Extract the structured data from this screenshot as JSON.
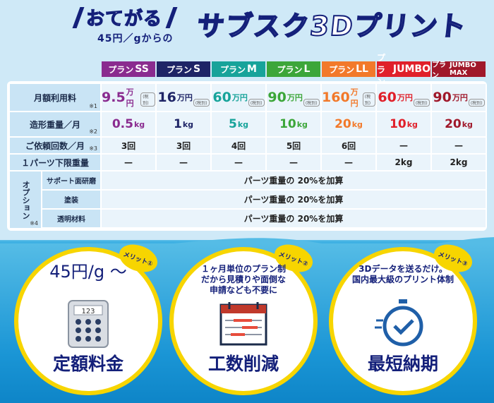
{
  "header": {
    "slogan": "おてがる",
    "sub": "45円／gからの",
    "brand": "サブスク3Dプリント"
  },
  "plans": [
    {
      "prefix": "プラン",
      "name": "SS",
      "color": "#8a2b8f"
    },
    {
      "prefix": "プラン",
      "name": "S",
      "color": "#1e2466"
    },
    {
      "prefix": "プラン",
      "name": "M",
      "color": "#17a39a"
    },
    {
      "prefix": "プラン",
      "name": "L",
      "color": "#3ca639"
    },
    {
      "prefix": "プラン",
      "name": "LL",
      "color": "#f2792a"
    },
    {
      "prefix": "プラン",
      "name": "JUMBO",
      "color": "#e0202a"
    },
    {
      "prefix": "プラン",
      "name": "JUMBO MAX",
      "color": "#a0182a"
    }
  ],
  "rows": {
    "monthly": {
      "label": "月額利用料",
      "note": "※1",
      "unit": "万円",
      "tax": "(税別)",
      "values": [
        "9.5",
        "16",
        "60",
        "90",
        "160",
        "60",
        "90"
      ]
    },
    "weight": {
      "label": "造形重量／月",
      "note": "※2",
      "unit": "kg",
      "values": [
        "0.5",
        "1",
        "5",
        "10",
        "20",
        "10",
        "20"
      ]
    },
    "requests": {
      "label": "ご依頼回数／月",
      "note": "※3",
      "values": [
        "3回",
        "3回",
        "4回",
        "5回",
        "6回",
        "—",
        "—"
      ]
    },
    "part_limit": {
      "label": "１パーツ下限重量",
      "values": [
        "—",
        "—",
        "—",
        "—",
        "—",
        "2kg",
        "2kg"
      ]
    }
  },
  "options": {
    "label": "オプション",
    "note": "※4",
    "items": [
      {
        "label": "サポート面研磨",
        "value": "パーツ重量の 20%を加算"
      },
      {
        "label": "塗装",
        "value": "パーツ重量の 20%を加算"
      },
      {
        "label": "透明材料",
        "value": "パーツ重量の 20%を加算"
      }
    ]
  },
  "merits": [
    {
      "tag": "メリット①",
      "title": "定額料金",
      "desc": "45円/g 〜",
      "icon": "calculator-icon"
    },
    {
      "tag": "メリット②",
      "title": "工数削減",
      "desc": "１ヶ月単位のプラン制\nだから見積りや面倒な\n申請なども不要に",
      "icon": "calendar-icon"
    },
    {
      "tag": "メリット③",
      "title": "最短納期",
      "desc": "3Dデータを送るだけ。\n国内最大級のプリント体制",
      "icon": "stopwatch-icon"
    }
  ],
  "calc_display": "123",
  "colors": {
    "navy": "#14207a",
    "yellow": "#f7d500",
    "label_bg": "#c9e4f5",
    "cell_bg": "#eaf4fb"
  }
}
